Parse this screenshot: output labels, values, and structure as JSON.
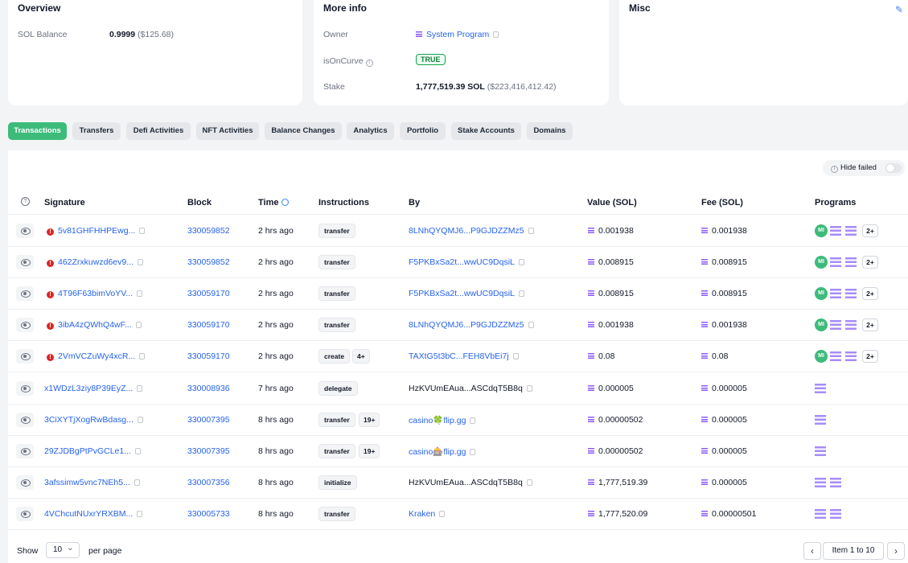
{
  "overview": {
    "title": "Overview",
    "sol_balance_label": "SOL Balance",
    "sol_balance": "0.9999",
    "sol_balance_usd": "($125.68)"
  },
  "more_info": {
    "title": "More info",
    "owner_label": "Owner",
    "owner": "System Program",
    "is_on_curve_label": "isOnCurve",
    "is_on_curve": "TRUE",
    "stake_label": "Stake",
    "stake": "1,777,519.39 SOL",
    "stake_usd": "($223,416,412.42)"
  },
  "misc": {
    "title": "Misc"
  },
  "tabs": [
    "Transactions",
    "Transfers",
    "Defi Activities",
    "NFT Activities",
    "Balance Changes",
    "Analytics",
    "Portfolio",
    "Stake Accounts",
    "Domains"
  ],
  "active_tab": "Transactions",
  "filters": {
    "hide_failed": "Hide failed"
  },
  "table": {
    "headers": {
      "signature": "Signature",
      "block": "Block",
      "time": "Time",
      "instructions": "Instructions",
      "by": "By",
      "value": "Value (SOL)",
      "fee": "Fee (SOL)",
      "programs": "Programs"
    },
    "rows": [
      {
        "signature": "5v81GHFHHPEwg...",
        "failed": true,
        "block": "330059852",
        "time": "2 hrs ago",
        "instruction": "transfer",
        "instruction_more": "",
        "by": "8LNhQYQMJ6...P9GJDZZMz5",
        "by_link": true,
        "value": "0.001938",
        "fee": "0.001938",
        "programs": {
          "mi": true,
          "sol_count": 2,
          "more": "2+"
        }
      },
      {
        "signature": "462Zrxkuwzd6ev9...",
        "failed": true,
        "block": "330059852",
        "time": "2 hrs ago",
        "instruction": "transfer",
        "instruction_more": "",
        "by": "F5PKBxSa2t...wwUC9DqsiL",
        "by_link": true,
        "value": "0.008915",
        "fee": "0.008915",
        "programs": {
          "mi": true,
          "sol_count": 2,
          "more": "2+"
        }
      },
      {
        "signature": "4T96F63bimVoYV...",
        "failed": true,
        "block": "330059170",
        "time": "2 hrs ago",
        "instruction": "transfer",
        "instruction_more": "",
        "by": "F5PKBxSa2t...wwUC9DqsiL",
        "by_link": true,
        "value": "0.008915",
        "fee": "0.008915",
        "programs": {
          "mi": true,
          "sol_count": 2,
          "more": "2+"
        }
      },
      {
        "signature": "3ibA4zQWhQ4wF...",
        "failed": true,
        "block": "330059170",
        "time": "2 hrs ago",
        "instruction": "transfer",
        "instruction_more": "",
        "by": "8LNhQYQMJ6...P9GJDZZMz5",
        "by_link": true,
        "value": "0.001938",
        "fee": "0.001938",
        "programs": {
          "mi": true,
          "sol_count": 2,
          "more": "2+"
        }
      },
      {
        "signature": "2VmVCZuWy4xcR...",
        "failed": true,
        "block": "330059170",
        "time": "2 hrs ago",
        "instruction": "create",
        "instruction_more": "4+",
        "by": "TAXtG5t3bC...FEH8VbEi7j",
        "by_link": true,
        "value": "0.08",
        "fee": "0.08",
        "programs": {
          "mi": true,
          "sol_count": 2,
          "more": "2+"
        }
      },
      {
        "signature": "x1WDzL3ziy8P39EyZ...",
        "failed": false,
        "block": "330008936",
        "time": "7 hrs ago",
        "instruction": "delegate",
        "instruction_more": "",
        "by": "HzKVUmEAua...ASCdqT5B8q",
        "by_link": false,
        "value": "0.000005",
        "fee": "0.000005",
        "programs": {
          "mi": false,
          "sol_count": 1,
          "more": ""
        }
      },
      {
        "signature": "3CiXYTjXogRwBdasg...",
        "failed": false,
        "block": "330007395",
        "time": "8 hrs ago",
        "instruction": "transfer",
        "instruction_more": "19+",
        "by": "casino🍀flip.gg",
        "by_link": true,
        "value": "0.00000502",
        "fee": "0.000005",
        "programs": {
          "mi": false,
          "sol_count": 1,
          "more": ""
        }
      },
      {
        "signature": "29ZJDBgPtPvGCLe1...",
        "failed": false,
        "block": "330007395",
        "time": "8 hrs ago",
        "instruction": "transfer",
        "instruction_more": "19+",
        "by": "casino🎰flip.gg",
        "by_link": true,
        "value": "0.00000502",
        "fee": "0.000005",
        "programs": {
          "mi": false,
          "sol_count": 1,
          "more": ""
        }
      },
      {
        "signature": "3afssimw5vnc7NEh5...",
        "failed": false,
        "block": "330007356",
        "time": "8 hrs ago",
        "instruction": "initialize",
        "instruction_more": "",
        "by": "HzKVUmEAua...ASCdqT5B8q",
        "by_link": false,
        "value": "1,777,519.39",
        "fee": "0.000005",
        "programs": {
          "mi": false,
          "sol_count": 2,
          "more": ""
        }
      },
      {
        "signature": "4VChcutNUxrYRXBM...",
        "failed": false,
        "block": "330005733",
        "time": "8 hrs ago",
        "instruction": "transfer",
        "instruction_more": "",
        "by": "Kraken",
        "by_link": true,
        "value": "1,777,520.09",
        "fee": "0.00000501",
        "programs": {
          "mi": false,
          "sol_count": 2,
          "more": ""
        }
      }
    ]
  },
  "pagination": {
    "show_label": "Show",
    "page_size": "10",
    "per_page_label": "per page",
    "info": "Item 1 to 10",
    "prev": "‹",
    "next": "›"
  },
  "icons": {
    "eye": "eye-icon",
    "copy": "copy-icon",
    "error": "error-icon",
    "help": "help-circle-icon",
    "clock": "clock-icon",
    "pencil": "pencil-icon",
    "info": "info-icon",
    "solana": "solana-icon"
  },
  "colors": {
    "accent": "#3dbb7b",
    "link": "#2563eb",
    "error": "#dc2626",
    "solana": "#8b5cf6"
  }
}
